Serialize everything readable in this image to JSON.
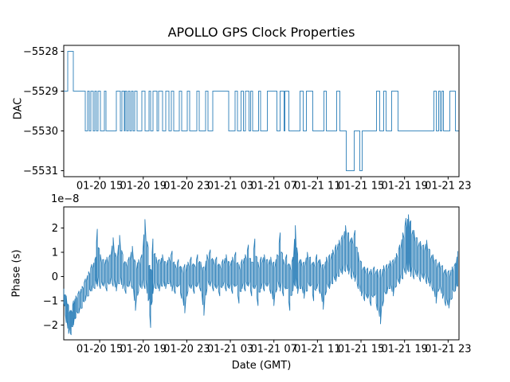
{
  "colors": {
    "line": "#1f77b4",
    "axis": "#000000",
    "text": "#000000",
    "background": "#ffffff"
  },
  "x_axis": {
    "tick_labels": [
      "01-20 15",
      "01-20 19",
      "01-20 23",
      "01-21 03",
      "01-21 07",
      "01-21 11",
      "01-21 15",
      "01-21 19",
      "01-21 23"
    ],
    "tick_hours": [
      0,
      4,
      8,
      12,
      16,
      20,
      24,
      28,
      32
    ],
    "lim_hours": [
      -3.3,
      33.0
    ],
    "note": "hours measured from 01-20 15:00 GMT, ticks every 4 hours"
  },
  "chart_data": [
    {
      "type": "line",
      "name": "dac-series",
      "title": "APOLLO GPS Clock Properties",
      "ylabel": "DAC",
      "yticks": [
        -5528,
        -5529,
        -5530,
        -5531
      ],
      "ylim": [
        -5531.15,
        -5527.85
      ],
      "legend": "none",
      "grid": false,
      "steps": [
        [
          -3.29,
          -5529
        ],
        [
          -2.92,
          -5528
        ],
        [
          -2.41,
          -5529
        ],
        [
          -1.32,
          -5530
        ],
        [
          -1.1,
          -5529
        ],
        [
          -0.95,
          -5530
        ],
        [
          -0.8,
          -5529
        ],
        [
          -0.58,
          -5530
        ],
        [
          -0.44,
          -5529
        ],
        [
          -0.29,
          -5530
        ],
        [
          -0.15,
          -5529
        ],
        [
          0.07,
          -5530
        ],
        [
          0.44,
          -5529
        ],
        [
          0.58,
          -5530
        ],
        [
          1.53,
          -5529
        ],
        [
          1.9,
          -5530
        ],
        [
          2.05,
          -5529
        ],
        [
          2.26,
          -5530
        ],
        [
          2.34,
          -5529
        ],
        [
          2.48,
          -5530
        ],
        [
          2.63,
          -5529
        ],
        [
          2.78,
          -5530
        ],
        [
          2.92,
          -5529
        ],
        [
          3.07,
          -5530
        ],
        [
          3.21,
          -5529
        ],
        [
          3.43,
          -5530
        ],
        [
          3.87,
          -5529
        ],
        [
          4.16,
          -5530
        ],
        [
          4.53,
          -5529
        ],
        [
          4.68,
          -5530
        ],
        [
          4.89,
          -5529
        ],
        [
          5.26,
          -5530
        ],
        [
          5.41,
          -5529
        ],
        [
          5.77,
          -5530
        ],
        [
          6.06,
          -5529
        ],
        [
          6.36,
          -5530
        ],
        [
          6.57,
          -5529
        ],
        [
          6.79,
          -5530
        ],
        [
          7.31,
          -5529
        ],
        [
          7.52,
          -5530
        ],
        [
          8.04,
          -5529
        ],
        [
          8.25,
          -5530
        ],
        [
          8.91,
          -5529
        ],
        [
          9.13,
          -5530
        ],
        [
          9.71,
          -5529
        ],
        [
          9.93,
          -5530
        ],
        [
          10.37,
          -5529
        ],
        [
          11.84,
          -5530
        ],
        [
          12.42,
          -5529
        ],
        [
          12.64,
          -5530
        ],
        [
          13.0,
          -5529
        ],
        [
          13.22,
          -5530
        ],
        [
          13.37,
          -5529
        ],
        [
          13.73,
          -5530
        ],
        [
          13.88,
          -5529
        ],
        [
          14.03,
          -5530
        ],
        [
          14.61,
          -5529
        ],
        [
          14.76,
          -5530
        ],
        [
          15.41,
          -5529
        ],
        [
          16.29,
          -5530
        ],
        [
          16.58,
          -5529
        ],
        [
          16.95,
          -5530
        ],
        [
          17.02,
          -5529
        ],
        [
          17.39,
          -5530
        ],
        [
          18.41,
          -5529
        ],
        [
          18.7,
          -5530
        ],
        [
          19.0,
          -5529
        ],
        [
          19.58,
          -5530
        ],
        [
          20.6,
          -5529
        ],
        [
          20.82,
          -5530
        ],
        [
          21.77,
          -5529
        ],
        [
          22.06,
          -5530
        ],
        [
          22.65,
          -5531
        ],
        [
          23.38,
          -5530
        ],
        [
          23.89,
          -5531
        ],
        [
          24.11,
          -5530
        ],
        [
          25.42,
          -5529
        ],
        [
          25.72,
          -5530
        ],
        [
          26.08,
          -5529
        ],
        [
          26.3,
          -5530
        ],
        [
          26.81,
          -5529
        ],
        [
          27.4,
          -5530
        ],
        [
          30.68,
          -5529
        ],
        [
          30.9,
          -5530
        ],
        [
          31.12,
          -5529
        ],
        [
          31.27,
          -5530
        ],
        [
          31.41,
          -5529
        ],
        [
          31.56,
          -5530
        ],
        [
          32.15,
          -5529
        ],
        [
          32.66,
          -5530
        ],
        [
          32.95,
          -5530
        ]
      ]
    },
    {
      "type": "line",
      "name": "phase-series",
      "ylabel": "Phase (s)",
      "xlabel": "Date (GMT)",
      "offset_text": "1e−8",
      "yticks": [
        2,
        1,
        0,
        -1,
        -2
      ],
      "ylim": [
        -2.61,
        2.87
      ],
      "units": "1e-8 s",
      "legend": "none",
      "grid": false,
      "envelope": [
        [
          -3.29,
          -1.1,
          -0.5
        ],
        [
          -3.07,
          -1.9,
          -0.8
        ],
        [
          -2.85,
          -2.35,
          -1.2
        ],
        [
          -2.63,
          -2.4,
          -1.4
        ],
        [
          -2.41,
          -2.0,
          -1.0
        ],
        [
          -2.19,
          -1.7,
          -0.8
        ],
        [
          -1.9,
          -1.5,
          -0.6
        ],
        [
          -1.61,
          -1.3,
          -0.4
        ],
        [
          -1.32,
          -1.0,
          -0.1
        ],
        [
          -1.02,
          -0.8,
          0.2
        ],
        [
          -0.73,
          -0.6,
          0.5
        ],
        [
          -0.44,
          -0.5,
          0.7
        ],
        [
          -0.22,
          -0.4,
          1.95
        ],
        [
          0.07,
          -0.5,
          0.9
        ],
        [
          0.37,
          -0.4,
          0.7
        ],
        [
          0.66,
          -0.6,
          0.8
        ],
        [
          0.95,
          -0.3,
          0.9
        ],
        [
          1.24,
          -0.4,
          1.6
        ],
        [
          1.53,
          -0.6,
          0.8
        ],
        [
          1.83,
          -0.3,
          1.7
        ],
        [
          2.12,
          -0.5,
          0.9
        ],
        [
          2.41,
          -0.7,
          0.6
        ],
        [
          2.7,
          -0.4,
          0.8
        ],
        [
          3.0,
          -0.5,
          1.25
        ],
        [
          3.29,
          -1.4,
          0.6
        ],
        [
          3.58,
          -0.6,
          0.7
        ],
        [
          3.87,
          -0.5,
          0.9
        ],
        [
          4.16,
          -0.5,
          2.35
        ],
        [
          4.46,
          -1.0,
          1.2
        ],
        [
          4.68,
          -2.1,
          0.3
        ],
        [
          4.89,
          -0.7,
          1.55
        ],
        [
          5.19,
          -0.5,
          0.8
        ],
        [
          5.48,
          -0.6,
          0.7
        ],
        [
          5.77,
          -0.4,
          0.9
        ],
        [
          6.06,
          -0.5,
          0.6
        ],
        [
          6.36,
          -0.3,
          0.8
        ],
        [
          6.65,
          -0.6,
          1.05
        ],
        [
          6.94,
          -0.7,
          0.5
        ],
        [
          7.23,
          -0.4,
          0.7
        ],
        [
          7.52,
          -0.9,
          0.4
        ],
        [
          7.82,
          -1.5,
          0.5
        ],
        [
          8.11,
          -0.6,
          0.6
        ],
        [
          8.4,
          -0.5,
          0.8
        ],
        [
          8.69,
          -0.7,
          0.5
        ],
        [
          8.99,
          -0.4,
          0.9
        ],
        [
          9.28,
          -0.6,
          0.6
        ],
        [
          9.57,
          -1.6,
          0.4
        ],
        [
          9.86,
          -0.5,
          0.9
        ],
        [
          10.16,
          -0.4,
          1.1
        ],
        [
          10.45,
          -0.6,
          0.7
        ],
        [
          10.74,
          -0.5,
          0.8
        ],
        [
          11.03,
          -0.8,
          0.5
        ],
        [
          11.32,
          -0.4,
          0.7
        ],
        [
          11.62,
          -0.6,
          0.9
        ],
        [
          11.91,
          -0.5,
          0.6
        ],
        [
          12.2,
          -0.7,
          0.8
        ],
        [
          12.49,
          -0.4,
          1.0
        ],
        [
          12.79,
          -1.1,
          0.5
        ],
        [
          13.08,
          -0.5,
          0.7
        ],
        [
          13.37,
          -0.6,
          0.9
        ],
        [
          13.66,
          -0.4,
          1.3
        ],
        [
          13.96,
          -0.8,
          0.6
        ],
        [
          14.25,
          -0.5,
          1.55
        ],
        [
          14.54,
          -1.2,
          0.6
        ],
        [
          14.83,
          -0.5,
          0.8
        ],
        [
          15.12,
          -0.6,
          0.9
        ],
        [
          15.41,
          -0.4,
          0.7
        ],
        [
          15.71,
          -0.7,
          0.8
        ],
        [
          16.0,
          -1.2,
          0.6
        ],
        [
          16.29,
          -0.5,
          0.9
        ],
        [
          16.58,
          -0.6,
          1.8
        ],
        [
          16.88,
          -0.8,
          0.7
        ],
        [
          17.17,
          -0.5,
          0.9
        ],
        [
          17.46,
          -1.4,
          0.5
        ],
        [
          17.75,
          -0.6,
          0.8
        ],
        [
          17.97,
          -0.4,
          2.1
        ],
        [
          18.19,
          -0.7,
          0.9
        ],
        [
          18.48,
          -0.5,
          0.7
        ],
        [
          18.77,
          -0.9,
          0.6
        ],
        [
          19.07,
          -0.6,
          1.0
        ],
        [
          19.36,
          -0.4,
          0.8
        ],
        [
          19.65,
          -1.0,
          0.6
        ],
        [
          19.94,
          -0.5,
          0.9
        ],
        [
          20.24,
          -0.7,
          0.7
        ],
        [
          20.53,
          -1.35,
          0.5
        ],
        [
          20.82,
          -0.6,
          0.8
        ],
        [
          21.11,
          -0.5,
          0.9
        ],
        [
          21.41,
          -0.3,
          1.1
        ],
        [
          21.7,
          -0.2,
          1.3
        ],
        [
          21.99,
          0.0,
          1.5
        ],
        [
          22.28,
          0.1,
          1.7
        ],
        [
          22.58,
          0.2,
          2.1
        ],
        [
          22.87,
          0.1,
          1.8
        ],
        [
          23.16,
          -0.1,
          1.6
        ],
        [
          23.45,
          -0.2,
          1.9
        ],
        [
          23.74,
          -0.5,
          1.0
        ],
        [
          24.04,
          -0.8,
          0.6
        ],
        [
          24.33,
          -1.0,
          0.4
        ],
        [
          24.62,
          -0.9,
          0.35
        ],
        [
          24.91,
          -1.2,
          0.3
        ],
        [
          25.21,
          -0.8,
          0.4
        ],
        [
          25.5,
          -1.4,
          0.3
        ],
        [
          25.79,
          -1.95,
          0.3
        ],
        [
          26.08,
          -1.0,
          0.45
        ],
        [
          26.38,
          -0.7,
          0.5
        ],
        [
          26.67,
          -0.5,
          0.65
        ],
        [
          26.96,
          -0.8,
          0.7
        ],
        [
          27.25,
          -0.4,
          0.95
        ],
        [
          27.55,
          -0.3,
          1.3
        ],
        [
          27.84,
          -0.1,
          1.8
        ],
        [
          28.13,
          0.1,
          2.4
        ],
        [
          28.35,
          0.2,
          2.55
        ],
        [
          28.57,
          0.0,
          2.3
        ],
        [
          28.86,
          -0.1,
          1.9
        ],
        [
          29.15,
          0.0,
          1.6
        ],
        [
          29.45,
          -0.2,
          1.45
        ],
        [
          29.74,
          -0.1,
          1.3
        ],
        [
          30.03,
          -0.3,
          1.5
        ],
        [
          30.32,
          -0.4,
          1.1
        ],
        [
          30.61,
          -0.6,
          0.9
        ],
        [
          30.9,
          -1.1,
          0.7
        ],
        [
          31.19,
          -0.5,
          0.6
        ],
        [
          31.49,
          -0.9,
          0.45
        ],
        [
          31.78,
          -1.2,
          0.3
        ],
        [
          32.07,
          -1.3,
          0.25
        ],
        [
          32.37,
          -0.9,
          0.4
        ],
        [
          32.66,
          -0.6,
          0.55
        ],
        [
          32.88,
          -0.4,
          1.05
        ]
      ]
    }
  ]
}
